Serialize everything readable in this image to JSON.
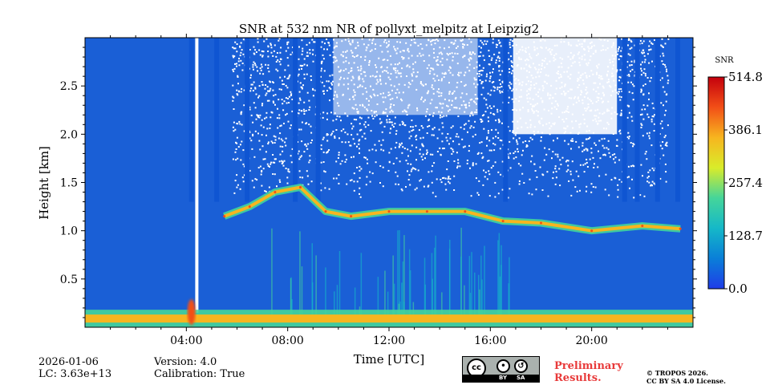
{
  "chart_data": {
    "type": "heatmap",
    "title": "SNR at 532 nm NR of pollyxt_melpitz at Leipzig2",
    "xlabel": "Time [UTC]",
    "ylabel": "Height [km]",
    "xlim_hours": [
      0,
      24
    ],
    "ylim_km": [
      0,
      3.0
    ],
    "x_ticks": [
      {
        "hours": 4,
        "label": "04:00"
      },
      {
        "hours": 8,
        "label": "08:00"
      },
      {
        "hours": 12,
        "label": "12:00"
      },
      {
        "hours": 16,
        "label": "16:00"
      },
      {
        "hours": 20,
        "label": "20:00"
      }
    ],
    "y_ticks": [
      {
        "km": 0.5,
        "label": "0.5"
      },
      {
        "km": 1.0,
        "label": "1.0"
      },
      {
        "km": 1.5,
        "label": "1.5"
      },
      {
        "km": 2.0,
        "label": "2.0"
      },
      {
        "km": 2.5,
        "label": "2.5"
      }
    ],
    "colorbar": {
      "label": "SNR",
      "range": [
        0,
        514.8
      ],
      "ticks": [
        {
          "value": 0.0,
          "label": "0.0"
        },
        {
          "value": 128.7,
          "label": "128.7"
        },
        {
          "value": 257.4,
          "label": "257.4"
        },
        {
          "value": 386.1,
          "label": "386.1"
        },
        {
          "value": 514.8,
          "label": "514.8"
        }
      ],
      "colors": [
        "#1f3ce8",
        "#0a7fd8",
        "#15b8c8",
        "#45d59a",
        "#d9ec2a",
        "#f7b51f",
        "#f24f17",
        "#c4000d"
      ]
    },
    "background_color": "#1a5fd6",
    "surface_band": {
      "height_km": 0.09,
      "snr": 300
    },
    "layer_top_km": [
      {
        "hours": 5.5,
        "km": 1.15
      },
      {
        "hours": 6.5,
        "km": 1.25
      },
      {
        "hours": 7.5,
        "km": 1.4
      },
      {
        "hours": 8.5,
        "km": 1.45
      },
      {
        "hours": 9.5,
        "km": 1.2
      },
      {
        "hours": 10.5,
        "km": 1.15
      },
      {
        "hours": 12.0,
        "km": 1.2
      },
      {
        "hours": 13.5,
        "km": 1.2
      },
      {
        "hours": 15.0,
        "km": 1.2
      },
      {
        "hours": 16.5,
        "km": 1.1
      },
      {
        "hours": 18.0,
        "km": 1.08
      },
      {
        "hours": 20.0,
        "km": 1.0
      },
      {
        "hours": 22.0,
        "km": 1.05
      },
      {
        "hours": 23.5,
        "km": 1.02
      }
    ],
    "cloud_columns_hours": [
      4.2,
      5.2,
      6.4,
      8.3,
      9.2,
      16.6,
      21.3,
      21.8,
      22.6,
      23.4
    ]
  },
  "footer": {
    "date": "2026-01-06",
    "lc": "LC: 3.63e+13",
    "version": "Version: 4.0",
    "calibration": "Calibration: True",
    "preliminary_line1": "Preliminary",
    "preliminary_line2": "Results.",
    "copyright_line1": "© TROPOS 2026.",
    "copyright_line2": "CC BY SA 4.0 License.",
    "license_badge": {
      "cc": "cc",
      "by": "BY",
      "sa": "SA"
    }
  }
}
